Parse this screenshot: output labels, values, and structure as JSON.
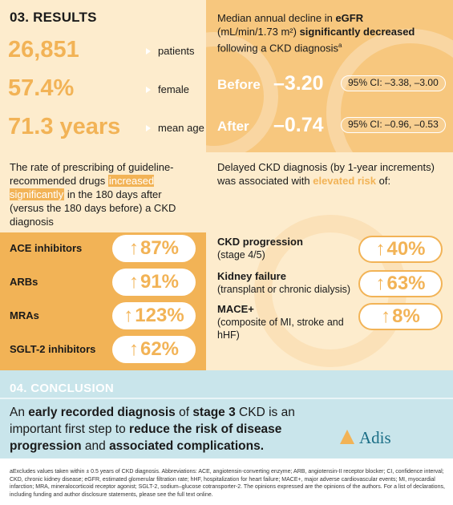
{
  "results": {
    "heading": "03. RESULTS",
    "stats": [
      {
        "value": "26,851",
        "label": "patients"
      },
      {
        "value": "57.4%",
        "label": "female"
      },
      {
        "value": "71.3 years",
        "label": "mean age"
      }
    ]
  },
  "egfr": {
    "title_a": "Median annual decline in ",
    "title_b": "eGFR",
    "title_c": "(mL/min/1.73 m²) ",
    "title_d": "significantly decreased",
    "title_e": "following a CKD diagnosis",
    "title_sup": "a",
    "before": {
      "label": "Before",
      "value": "–3.20",
      "ci": "95% CI: –3.38, –3.00"
    },
    "after": {
      "label": "After",
      "value": "–0.74",
      "ci": "95% CI: –0.96, –0.53"
    }
  },
  "prescribing": {
    "text_a": "The rate of prescribing of guideline-recommended drugs ",
    "text_b": "increased significantly",
    "text_c": " in the 180 days after (versus the 180 days before) a CKD diagnosis",
    "drugs": [
      {
        "name": "ACE inhibitors",
        "value": "87%"
      },
      {
        "name": "ARBs",
        "value": "91%"
      },
      {
        "name": "MRAs",
        "value": "123%"
      },
      {
        "name": "SGLT-2 inhibitors",
        "value": "62%"
      }
    ]
  },
  "delayed": {
    "text_a": "Delayed CKD diagnosis (by 1-year increments) was associated with ",
    "text_b": "elevated risk",
    "text_c": " of:",
    "risks": [
      {
        "name": "CKD progression",
        "detail": "(stage 4/5)",
        "value": "40%"
      },
      {
        "name": "Kidney failure",
        "detail": "(transplant or chronic dialysis)",
        "value": "63%"
      },
      {
        "name": "MACE+",
        "detail": "(composite of MI, stroke and hHF)",
        "value": "8%"
      }
    ]
  },
  "arrow_glyph": "↑",
  "conclusion": {
    "heading": "04. CONCLUSION",
    "p1": "An ",
    "p2": "early recorded diagnosis",
    "p3": " of ",
    "p4": "stage 3",
    "p5": " CKD is an important first step to ",
    "p6": "reduce the risk of disease progression",
    "p7": " and ",
    "p8": "associated complications.",
    "logo": "Adis"
  },
  "footnote": "aExcludes values taken within ± 0.5 years of CKD diagnosis. Abbreviations: ACE, angiotensin-converting enzyme; ARB, angiotensin-II receptor blocker; CI, confidence interval; CKD, chronic kidney disease; eGFR, estimated glomerular filtration rate; hHF, hospitalization for heart failure; MACE+, major adverse cardiovascular events; MI, myocardial infarction; MRA, mineralocorticoid receptor agonist; SGLT-2, sodium–glucose cotransporter-2. The opinions expressed are the opinions of the authors. For a list of declarations, including funding and author disclosure statements, please see the full text online.",
  "colors": {
    "accent": "#f2b356",
    "cream": "#fdeccd",
    "teal": "#c9e5eb",
    "logo": "#1a6e86"
  }
}
